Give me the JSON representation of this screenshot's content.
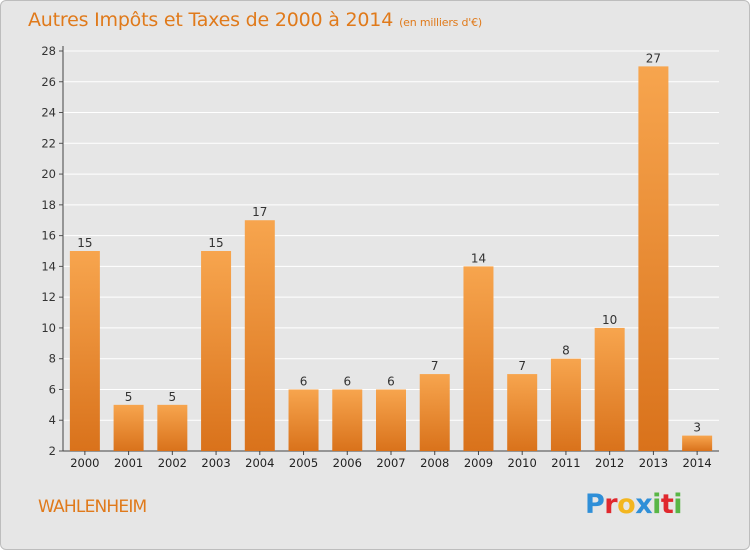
{
  "chart_data": {
    "type": "bar",
    "title": "Autres Impôts et Taxes de 2000 à 2014",
    "subtitle": "(en milliers d'€)",
    "categories": [
      "2000",
      "2001",
      "2002",
      "2003",
      "2004",
      "2005",
      "2006",
      "2007",
      "2008",
      "2009",
      "2010",
      "2011",
      "2012",
      "2013",
      "2014"
    ],
    "values": [
      15,
      5,
      5,
      15,
      17,
      6,
      6,
      6,
      7,
      14,
      7,
      8,
      10,
      27,
      3
    ],
    "ylim": [
      2,
      28
    ],
    "yticks": [
      2,
      4,
      6,
      8,
      10,
      12,
      14,
      16,
      18,
      20,
      22,
      24,
      26,
      28
    ],
    "grid": true,
    "colors": {
      "bar_top": "#f7a54e",
      "bar_bottom": "#d9721b",
      "grid": "#ffffff"
    }
  },
  "place_name": "WAHLENHEIM",
  "logo": {
    "letters": [
      "P",
      "r",
      "o",
      "x",
      "i",
      "t",
      "i"
    ],
    "colors": [
      "#2f8fd8",
      "#e0282e",
      "#f3b61f",
      "#2f8fd8",
      "#59b646",
      "#e0282e",
      "#59b646"
    ]
  }
}
